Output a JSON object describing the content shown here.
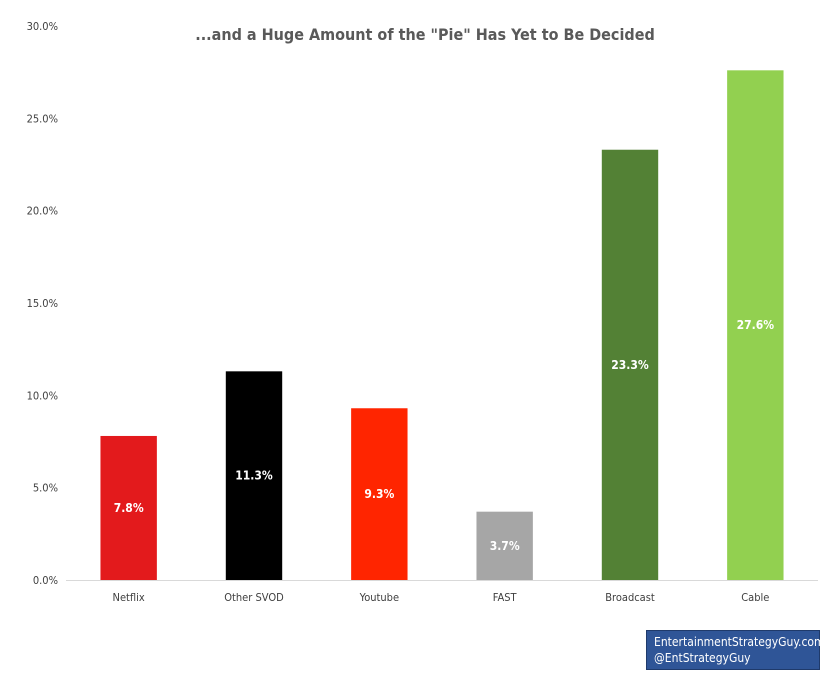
{
  "chart_data": {
    "type": "bar",
    "title": "...and a Huge Amount of the \"Pie\" Has Yet to Be Decided",
    "categories": [
      "Netflix",
      "Other SVOD",
      "Youtube",
      "FAST",
      "Broadcast",
      "Cable"
    ],
    "values": [
      7.8,
      11.3,
      9.3,
      3.7,
      23.3,
      27.6
    ],
    "data_labels": [
      "7.8%",
      "11.3%",
      "9.3%",
      "3.7%",
      "23.3%",
      "27.6%"
    ],
    "bar_colors": [
      "#e31a1c",
      "#000000",
      "#ff2500",
      "#a6a6a6",
      "#538135",
      "#92d050"
    ],
    "ylim": [
      0,
      30
    ],
    "y_ticks": [
      0,
      5,
      10,
      15,
      20,
      25,
      30
    ],
    "y_tick_labels": [
      "0.0%",
      "5.0%",
      "10.0%",
      "15.0%",
      "20.0%",
      "25.0%",
      "30.0%"
    ],
    "xlabel": "",
    "ylabel": "",
    "grid": false,
    "legend": "none"
  },
  "watermark": {
    "line1": "EntertainmentStrategyGuy.com",
    "line2": "@EntStrategyGuy",
    "background": "#2f5597"
  }
}
